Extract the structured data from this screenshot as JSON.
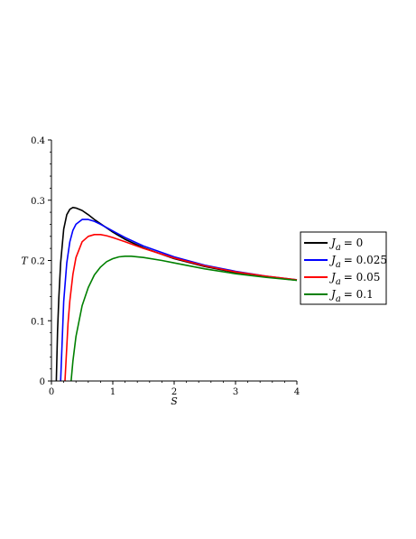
{
  "chart_data": {
    "type": "line",
    "xlabel": "S",
    "ylabel": "T",
    "xlim": [
      0,
      4
    ],
    "ylim": [
      0,
      0.4
    ],
    "xticks": [
      "0",
      "1",
      "2",
      "3",
      "4"
    ],
    "yticks": [
      "0",
      "0.1",
      "0.2",
      "0.3",
      "0.4"
    ],
    "grid": false,
    "legend_position": "right",
    "series": [
      {
        "name": "J_a = 0",
        "legend_symbol": "J",
        "legend_subscript": "a",
        "legend_value": "= 0",
        "color": "#000000",
        "x": [
          0.08,
          0.1,
          0.12,
          0.15,
          0.2,
          0.25,
          0.3,
          0.35,
          0.4,
          0.5,
          0.6,
          0.7,
          0.8,
          1.0,
          1.2,
          1.5,
          2.0,
          2.5,
          3.0,
          3.5,
          4.0
        ],
        "y": [
          0.0,
          0.084,
          0.138,
          0.196,
          0.252,
          0.276,
          0.285,
          0.288,
          0.287,
          0.283,
          0.276,
          0.268,
          0.261,
          0.247,
          0.235,
          0.221,
          0.203,
          0.19,
          0.18,
          0.173,
          0.167
        ]
      },
      {
        "name": "J_a = 0.025",
        "legend_symbol": "J",
        "legend_subscript": "a",
        "legend_value": "= 0.025",
        "color": "#0000ff",
        "x": [
          0.15,
          0.2,
          0.25,
          0.3,
          0.35,
          0.4,
          0.5,
          0.6,
          0.7,
          0.8,
          1.0,
          1.2,
          1.5,
          2.0,
          2.5,
          3.0,
          3.5,
          4.0
        ],
        "y": [
          0.0,
          0.132,
          0.196,
          0.231,
          0.25,
          0.26,
          0.268,
          0.268,
          0.265,
          0.26,
          0.249,
          0.238,
          0.224,
          0.206,
          0.192,
          0.182,
          0.174,
          0.168
        ]
      },
      {
        "name": "J_a = 0.05",
        "legend_symbol": "J",
        "legend_subscript": "a",
        "legend_value": "= 0.05",
        "color": "#ff0000",
        "x": [
          0.22,
          0.27,
          0.3,
          0.35,
          0.4,
          0.5,
          0.6,
          0.7,
          0.8,
          0.9,
          1.0,
          1.2,
          1.5,
          2.0,
          2.5,
          3.0,
          3.5,
          4.0
        ],
        "y": [
          0.0,
          0.096,
          0.133,
          0.177,
          0.205,
          0.231,
          0.24,
          0.243,
          0.243,
          0.241,
          0.238,
          0.231,
          0.22,
          0.204,
          0.191,
          0.181,
          0.174,
          0.168
        ]
      },
      {
        "name": "J_a = 0.1",
        "legend_symbol": "J",
        "legend_subscript": "a",
        "legend_value": "= 0.1",
        "color": "#008000",
        "x": [
          0.32,
          0.35,
          0.4,
          0.5,
          0.6,
          0.7,
          0.8,
          0.9,
          1.0,
          1.1,
          1.2,
          1.3,
          1.5,
          1.8,
          2.0,
          2.5,
          3.0,
          3.5,
          4.0
        ],
        "y": [
          0.0,
          0.033,
          0.074,
          0.125,
          0.155,
          0.176,
          0.189,
          0.198,
          0.203,
          0.206,
          0.207,
          0.207,
          0.205,
          0.2,
          0.196,
          0.186,
          0.178,
          0.172,
          0.167
        ]
      }
    ]
  }
}
